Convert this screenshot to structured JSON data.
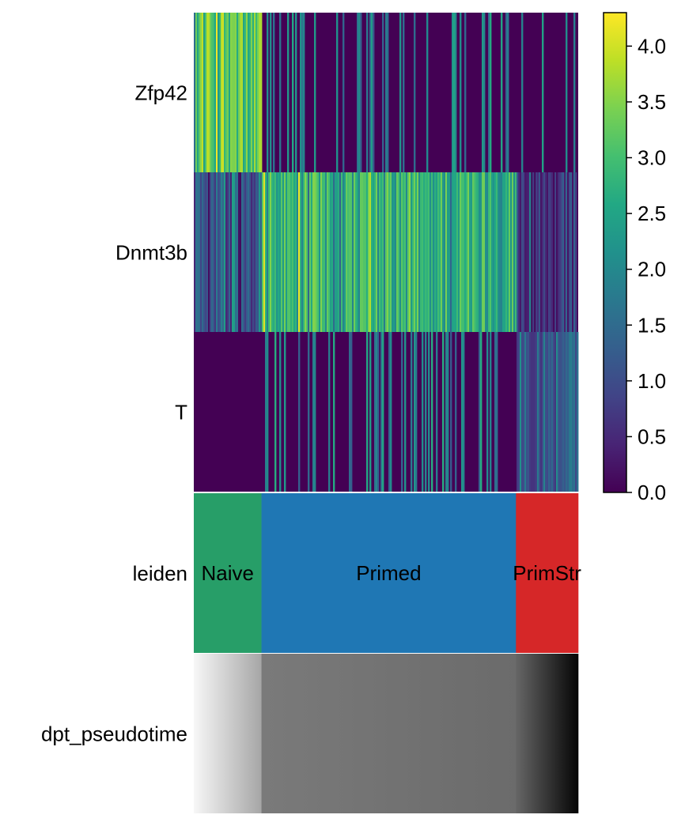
{
  "chart_data": {
    "type": "heatmap",
    "rows": [
      "Zfp42",
      "Dnmt3b",
      "T",
      "leiden",
      "dpt_pseudotime"
    ],
    "genes": [
      "Zfp42",
      "Dnmt3b",
      "T"
    ],
    "colormap": "viridis",
    "colorbar": {
      "min": 0.0,
      "max": 4.3,
      "ticks": [
        "0.0",
        "0.5",
        "1.0",
        "1.5",
        "2.0",
        "2.5",
        "3.0",
        "3.5",
        "4.0"
      ]
    },
    "annotation_track": {
      "name": "leiden",
      "groups": [
        {
          "label": "Naive",
          "color": "#279e68",
          "fraction": 0.176
        },
        {
          "label": "Primed",
          "color": "#1f77b4",
          "fraction": 0.662
        },
        {
          "label": "PrimStr",
          "color": "#d62728",
          "fraction": 0.162
        }
      ]
    },
    "pseudotime_track": {
      "name": "dpt_pseudotime",
      "colormap": "Greys",
      "segments": [
        {
          "group": "Naive",
          "from": 0.03,
          "to": 0.35
        },
        {
          "group": "Primed",
          "from": 0.52,
          "to": 0.58
        },
        {
          "group": "PrimStr",
          "from": 0.6,
          "to": 0.98
        }
      ]
    },
    "expression_profile": {
      "Zfp42": {
        "Naive": 3.1,
        "Primed": 0.15,
        "PrimStr": 0.05
      },
      "Dnmt3b": {
        "Naive": 0.9,
        "Primed": 2.7,
        "PrimStr": 0.6
      },
      "T": {
        "Naive": 0.0,
        "Primed": 0.15,
        "PrimStr": 1.4
      }
    }
  }
}
